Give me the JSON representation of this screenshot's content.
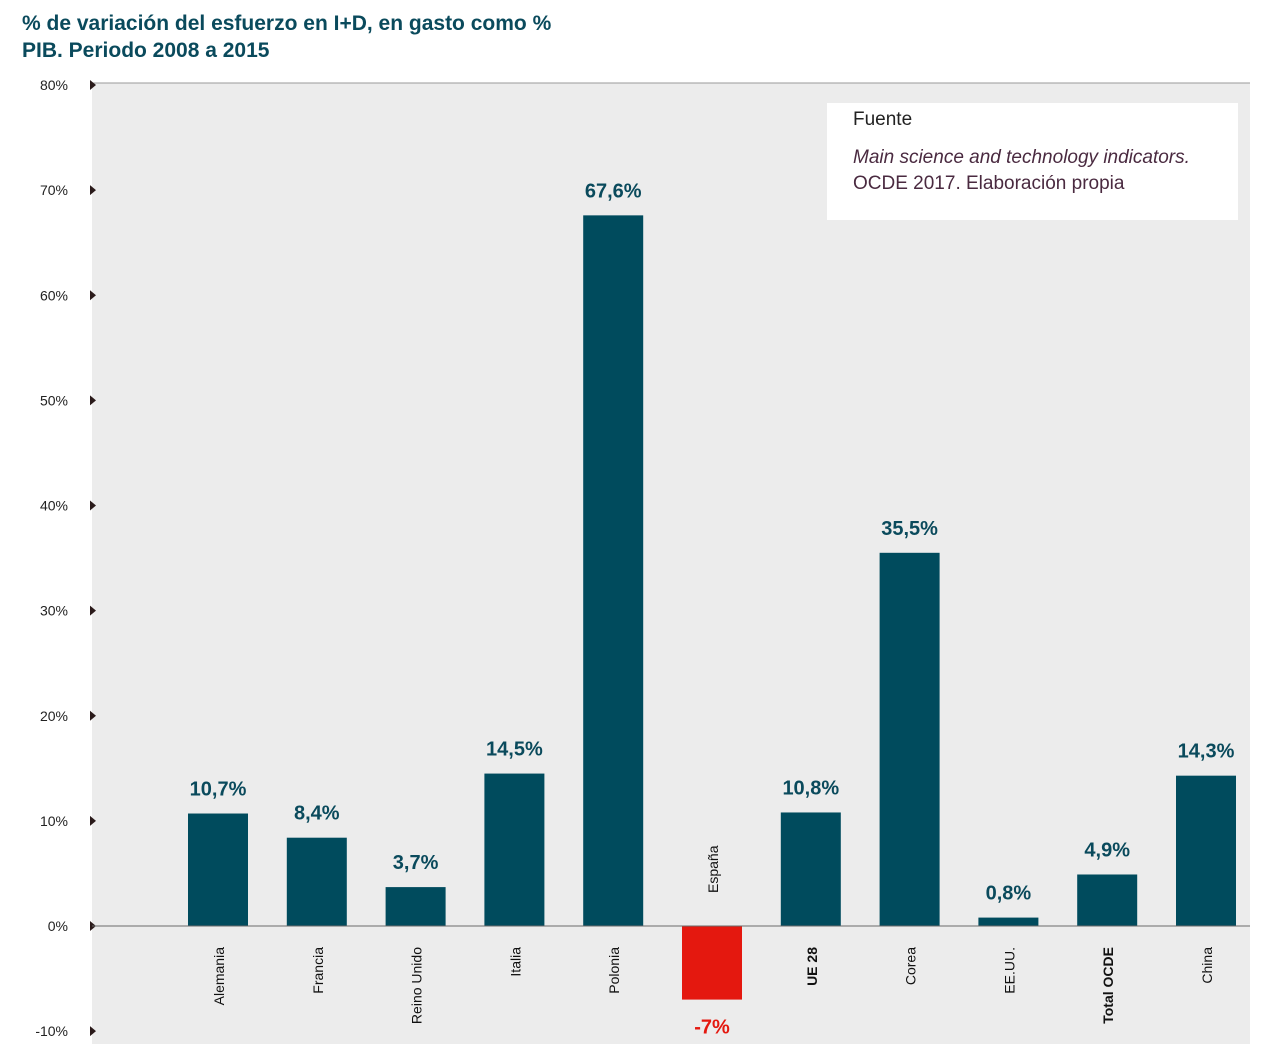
{
  "title": {
    "line1": "% de variación del esfuerzo en I+D, en gasto como %",
    "line2": "PIB. Periodo 2008 a 2015"
  },
  "source": {
    "heading": "Fuente",
    "line1": "Main science and technology indicators.",
    "line2": "OCDE 2017. Elaboración propia"
  },
  "colors": {
    "bar": "#004b5d",
    "negative_bar": "#e4180f",
    "label": "#0a4a5c",
    "negative_label": "#e4180f",
    "background": "#ececec"
  },
  "chart_data": {
    "type": "bar",
    "title": "% de variación del esfuerzo en I+D, en gasto como % PIB. Periodo 2008 a 2015",
    "categories": [
      "Alemania",
      "Francia",
      "Reino Unido",
      "Italia",
      "Polonia",
      "España",
      "UE 28",
      "Corea",
      "EE.UU.",
      "Total OCDE",
      "China"
    ],
    "bold_categories": [
      "UE 28",
      "Total OCDE"
    ],
    "values": [
      10.7,
      8.4,
      3.7,
      14.5,
      67.6,
      -7,
      10.8,
      35.5,
      0.8,
      4.9,
      14.3
    ],
    "value_labels": [
      "10,7%",
      "8,4%",
      "3,7%",
      "14,5%",
      "67,6%",
      "-7%",
      "10,8%",
      "35,5%",
      "0,8%",
      "4,9%",
      "14,3%"
    ],
    "yticks": [
      80,
      70,
      60,
      50,
      40,
      30,
      20,
      10,
      0,
      -10
    ],
    "ytick_labels": [
      "80%",
      "70%",
      "60%",
      "50%",
      "40%",
      "30%",
      "20%",
      "10%",
      "0%",
      "-10%"
    ],
    "ylim": [
      -10,
      80
    ],
    "xlabel": "",
    "ylabel": "",
    "grid": false
  }
}
